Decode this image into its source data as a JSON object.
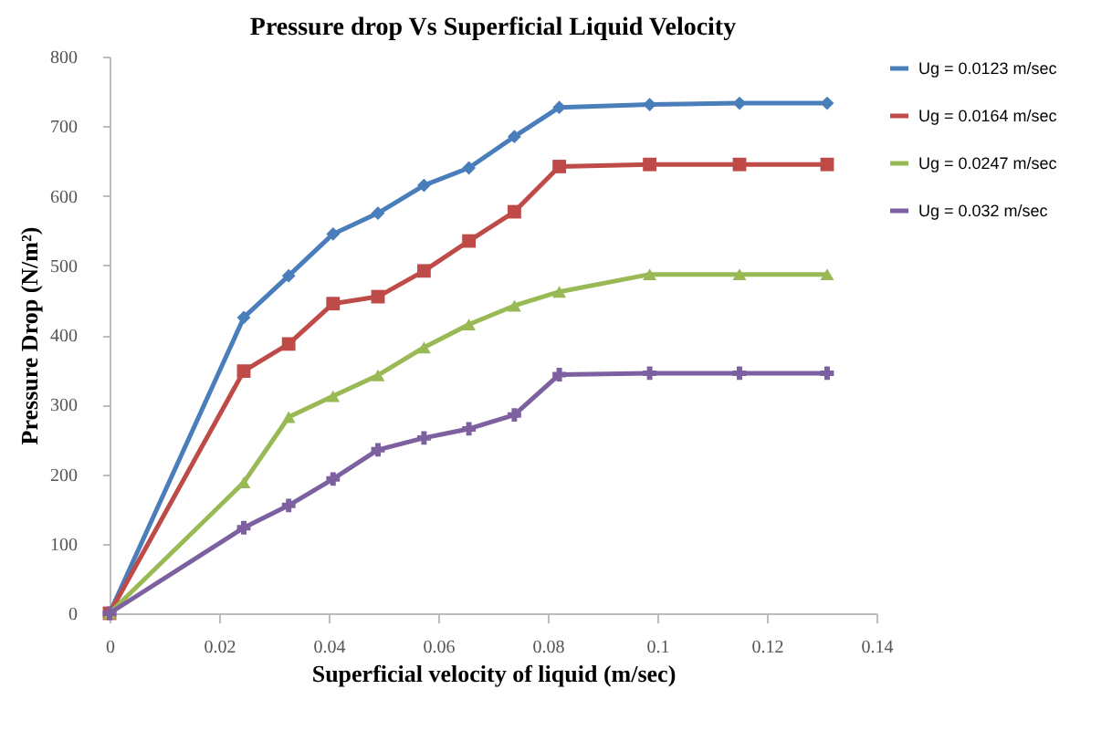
{
  "chart_data": {
    "type": "line",
    "title": "Pressure drop Vs Superficial Liquid Velocity",
    "xlabel": "Superficial velocity of liquid (m/sec)",
    "ylabel": "Pressure Drop (N/m²)",
    "x": [
      0,
      0.0245,
      0.0327,
      0.0408,
      0.049,
      0.0574,
      0.0656,
      0.0739,
      0.0821,
      0.0986,
      0.115,
      0.131
    ],
    "series": [
      {
        "name": "Ug = 0.0123 m/sec",
        "color": "#4a7ebb",
        "marker": "diamond",
        "values": [
          0,
          425,
          485,
          545,
          575,
          615,
          640,
          685,
          727,
          731,
          733,
          733
        ]
      },
      {
        "name": "Ug = 0.0164 m/sec",
        "color": "#be4b48",
        "marker": "square",
        "values": [
          0,
          348,
          387,
          445,
          455,
          492,
          535,
          577,
          642,
          645,
          645,
          645
        ]
      },
      {
        "name": "Ug = 0.0247 m/sec",
        "color": "#98b954",
        "marker": "triangle",
        "values": [
          0,
          188,
          282,
          312,
          342,
          382,
          415,
          442,
          462,
          487,
          487,
          487
        ]
      },
      {
        "name": "Ug = 0.032 m/sec",
        "color": "#7d60a0",
        "marker": "cross",
        "values": [
          0,
          123,
          155,
          193,
          235,
          252,
          265,
          285,
          343,
          345,
          345,
          345
        ]
      }
    ],
    "xlim": [
      0,
      0.14
    ],
    "xticks": [
      0,
      0.02,
      0.04,
      0.06,
      0.08,
      0.1,
      0.12,
      0.14
    ],
    "ylim": [
      0,
      800
    ],
    "yticks": [
      0,
      100,
      200,
      300,
      400,
      500,
      600,
      700,
      800
    ],
    "grid": false,
    "legend": "right"
  }
}
